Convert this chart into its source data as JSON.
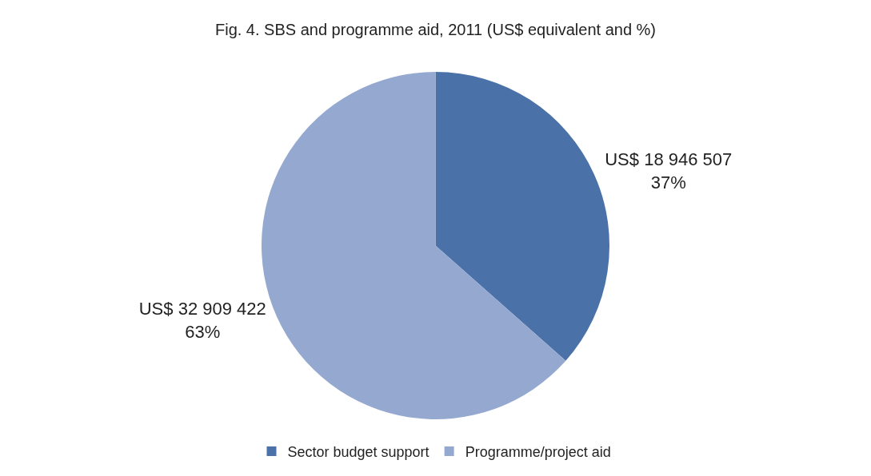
{
  "chart_data": {
    "type": "pie",
    "title": "Fig. 4. SBS and programme aid, 2011 (US$ equivalent and %)",
    "categories": [
      "Sector budget support",
      "Programme/project aid"
    ],
    "values": [
      18946507,
      32909422
    ],
    "colors": [
      "#4a72a8",
      "#95a9d0"
    ],
    "value_labels": [
      "US$ 18 946 507\n37%",
      "US$ 32 909 422\n63%"
    ],
    "legend": "bottom"
  }
}
